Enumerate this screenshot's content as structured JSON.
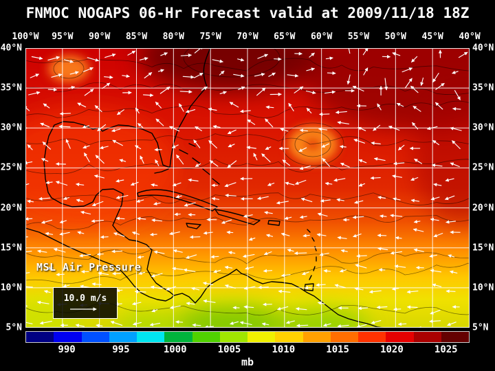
{
  "title": "FNMOC NOGAPS 06-Hr Forecast valid at 2009/11/18 18Z",
  "map": {
    "lon_labels": [
      "100°W",
      "95°W",
      "90°W",
      "85°W",
      "80°W",
      "75°W",
      "70°W",
      "65°W",
      "60°W",
      "55°W",
      "50°W",
      "45°W",
      "40°W"
    ],
    "lat_labels": [
      "40°N",
      "35°N",
      "30°N",
      "25°N",
      "20°N",
      "15°N",
      "10°N",
      "5°N"
    ],
    "field_label": "MSL Air Pressure",
    "wind_scale_label": "10.0 m/s"
  },
  "colorbar": {
    "unit": "mb",
    "tick_labels": [
      "990",
      "995",
      "1000",
      "1005",
      "1010",
      "1015",
      "1020",
      "1025"
    ],
    "segments": [
      "#000082",
      "#0000f0",
      "#0050ff",
      "#00a0ff",
      "#00e6f0",
      "#00b43c",
      "#50d200",
      "#a0e600",
      "#f0f000",
      "#ffd200",
      "#ffa000",
      "#ff6e00",
      "#ff3200",
      "#e60000",
      "#aa0000",
      "#640000"
    ]
  },
  "colors": {
    "background": "#000000",
    "text": "#ffffff",
    "grid": "#ffffff",
    "coastline": "#000000",
    "wind_arrows": "#ffffff"
  }
}
